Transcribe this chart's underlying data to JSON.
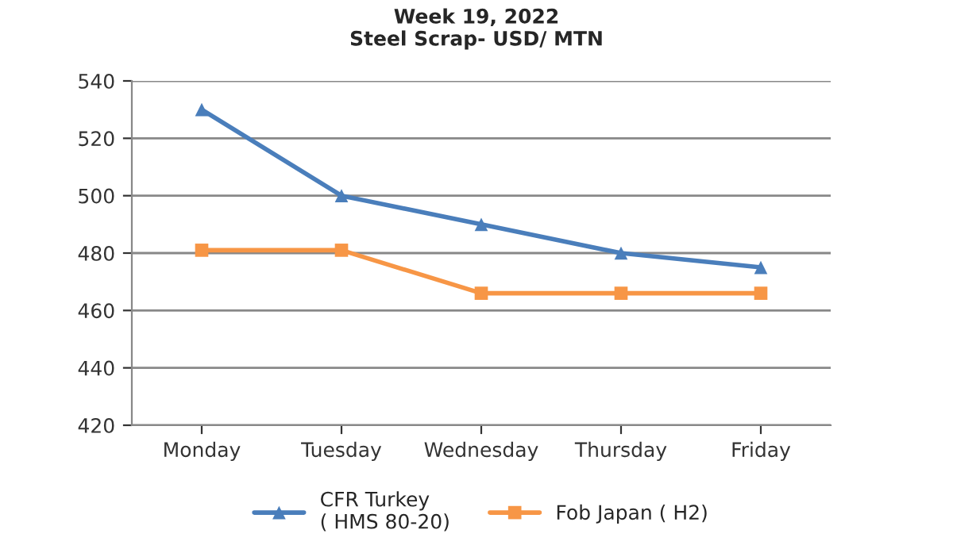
{
  "chart_data": {
    "type": "line",
    "title": "Week 19, 2022\nSteel Scrap- USD/ MTN",
    "categories": [
      "Monday",
      "Tuesday",
      "Wednesday",
      "Thursday",
      "Friday"
    ],
    "series": [
      {
        "name": "CFR Turkey\n( HMS 80-20)",
        "color": "#4a7ebb",
        "marker": "triangle",
        "values": [
          530,
          500,
          490,
          480,
          475
        ]
      },
      {
        "name": "Fob Japan ( H2)",
        "color": "#f79646",
        "marker": "square",
        "values": [
          481,
          481,
          466,
          466,
          466
        ]
      }
    ],
    "ylim": [
      420,
      540
    ],
    "yticks": [
      420,
      440,
      460,
      480,
      500,
      520,
      540
    ],
    "grid": "y",
    "legend": "bottom"
  }
}
